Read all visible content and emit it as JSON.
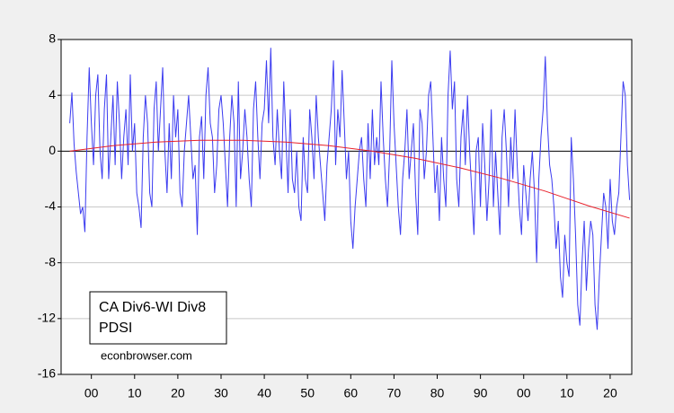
{
  "chart_data": {
    "type": "line",
    "annotations": [
      "CA Div6-WI Div8",
      "PDSI"
    ],
    "source": "econbrowser.com",
    "xlim": [
      1893,
      2025
    ],
    "xticks": [
      {
        "value": 1900,
        "label": "00"
      },
      {
        "value": 1910,
        "label": "10"
      },
      {
        "value": 1920,
        "label": "20"
      },
      {
        "value": 1930,
        "label": "30"
      },
      {
        "value": 1940,
        "label": "40"
      },
      {
        "value": 1950,
        "label": "50"
      },
      {
        "value": 1960,
        "label": "60"
      },
      {
        "value": 1970,
        "label": "70"
      },
      {
        "value": 1980,
        "label": "80"
      },
      {
        "value": 1990,
        "label": "90"
      },
      {
        "value": 2000,
        "label": "00"
      },
      {
        "value": 2010,
        "label": "10"
      },
      {
        "value": 2020,
        "label": "20"
      }
    ],
    "ylim": [
      -16,
      8
    ],
    "yticks": [
      -16,
      -12,
      -8,
      -4,
      0,
      4,
      8
    ],
    "grid": true,
    "series": [
      {
        "color": "#3b3bf0",
        "x": [
          1895,
          1895.5,
          1896,
          1896.5,
          1897,
          1897.5,
          1898,
          1898.5,
          1899,
          1899.5,
          1900,
          1900.5,
          1901,
          1901.5,
          1902,
          1902.5,
          1903,
          1903.5,
          1904,
          1904.5,
          1905,
          1905.5,
          1906,
          1906.5,
          1907,
          1907.5,
          1908,
          1908.5,
          1909,
          1909.5,
          1910,
          1910.5,
          1911,
          1911.5,
          1912,
          1912.5,
          1913,
          1913.5,
          1914,
          1914.5,
          1915,
          1915.5,
          1916,
          1916.5,
          1917,
          1917.5,
          1918,
          1918.5,
          1919,
          1919.5,
          1920,
          1920.5,
          1921,
          1921.5,
          1922,
          1922.5,
          1923,
          1923.5,
          1924,
          1924.5,
          1925,
          1925.5,
          1926,
          1926.5,
          1927,
          1927.5,
          1928,
          1928.5,
          1929,
          1929.5,
          1930,
          1930.5,
          1931,
          1931.5,
          1932,
          1932.5,
          1933,
          1933.5,
          1934,
          1934.5,
          1935,
          1935.5,
          1936,
          1936.5,
          1937,
          1937.5,
          1938,
          1938.5,
          1939,
          1939.5,
          1940,
          1940.5,
          1941,
          1941.5,
          1942,
          1942.5,
          1943,
          1943.5,
          1944,
          1944.5,
          1945,
          1945.5,
          1946,
          1946.5,
          1947,
          1947.5,
          1948,
          1948.5,
          1949,
          1949.5,
          1950,
          1950.5,
          1951,
          1951.5,
          1952,
          1952.5,
          1953,
          1953.5,
          1954,
          1954.5,
          1955,
          1955.5,
          1956,
          1956.5,
          1957,
          1957.5,
          1958,
          1958.5,
          1959,
          1959.5,
          1960,
          1960.5,
          1961,
          1961.5,
          1962,
          1962.5,
          1963,
          1963.5,
          1964,
          1964.5,
          1965,
          1965.5,
          1966,
          1966.5,
          1967,
          1967.5,
          1968,
          1968.5,
          1969,
          1969.5,
          1970,
          1970.5,
          1971,
          1971.5,
          1972,
          1972.5,
          1973,
          1973.5,
          1974,
          1974.5,
          1975,
          1975.5,
          1976,
          1976.5,
          1977,
          1977.5,
          1978,
          1978.5,
          1979,
          1979.5,
          1980,
          1980.5,
          1981,
          1981.5,
          1982,
          1982.5,
          1983,
          1983.5,
          1984,
          1984.5,
          1985,
          1985.5,
          1986,
          1986.5,
          1987,
          1987.5,
          1988,
          1988.5,
          1989,
          1989.5,
          1990,
          1990.5,
          1991,
          1991.5,
          1992,
          1992.5,
          1993,
          1993.5,
          1994,
          1994.5,
          1995,
          1995.5,
          1996,
          1996.5,
          1997,
          1997.5,
          1998,
          1998.5,
          1999,
          1999.5,
          2000,
          2000.5,
          2001,
          2001.5,
          2002,
          2002.5,
          2003,
          2003.5,
          2004,
          2004.5,
          2005,
          2005.5,
          2006,
          2006.5,
          2007,
          2007.5,
          2008,
          2008.5,
          2009,
          2009.5,
          2010,
          2010.5,
          2011,
          2011.5,
          2012,
          2012.5,
          2013,
          2013.5,
          2014,
          2014.5,
          2015,
          2015.5,
          2016,
          2016.5,
          2017,
          2017.5,
          2018,
          2018.5,
          2019,
          2019.5,
          2020,
          2020.5,
          2021,
          2021.5,
          2022,
          2022.5,
          2023,
          2023.5,
          2024,
          2024.5
        ],
        "values": [
          2,
          4.2,
          0.5,
          -1.5,
          -3,
          -4.5,
          -4,
          -5.8,
          1,
          6,
          2,
          -1,
          4,
          5.5,
          0,
          -2,
          3,
          5.5,
          -2,
          1,
          4,
          -1,
          5,
          2,
          -2,
          1,
          3,
          -1,
          5.5,
          0,
          2,
          -3,
          -4,
          -5.5,
          1,
          4,
          2,
          -3,
          -4,
          3,
          5,
          0,
          3,
          6,
          0,
          -3,
          2,
          -2,
          4,
          1,
          3,
          -3,
          -4,
          0,
          2,
          4,
          1,
          -2,
          -1,
          -6,
          1,
          2.5,
          -2,
          4,
          6,
          2,
          1,
          -3,
          -1,
          3,
          4,
          2,
          -1,
          -4,
          1,
          4,
          2,
          -4,
          5,
          -2,
          0,
          3,
          1,
          -2,
          -4,
          3,
          5,
          1,
          -2,
          2,
          3,
          6.5,
          2,
          7.4,
          1,
          -1,
          3,
          0,
          -2,
          5,
          1,
          -3,
          3,
          -2,
          -3,
          0,
          -4,
          -5,
          1,
          -2,
          -3,
          3,
          1,
          -2,
          4,
          1,
          -1,
          -3,
          -5,
          -1,
          1,
          3,
          6.5,
          -1,
          3,
          1,
          5.8,
          2,
          -2,
          0,
          -5,
          -7,
          -4,
          -2,
          0,
          1,
          -2,
          -4,
          2,
          -2,
          3,
          -1,
          1,
          -1,
          5,
          1,
          -2,
          -4,
          0,
          6.5,
          2,
          -1,
          -4,
          -6,
          -2,
          0,
          3,
          -2,
          0,
          2,
          -3,
          -6,
          3,
          2,
          -2,
          0,
          4,
          5,
          1,
          -3,
          -1,
          -5,
          1,
          -2,
          -4,
          4,
          7.2,
          3,
          5,
          -2,
          -4,
          1,
          3,
          -1,
          4,
          0,
          -3,
          -6,
          0,
          1,
          -4,
          2,
          -1,
          -5,
          -2,
          3,
          -4,
          0,
          -3,
          -6,
          1,
          3,
          0,
          -4,
          1,
          -2,
          3,
          -1,
          -4,
          -6,
          -1,
          -3,
          -5,
          -2,
          0,
          -3,
          -8,
          -2,
          1,
          3,
          6.8,
          2,
          -1,
          -2,
          -4,
          -7,
          -5,
          -9,
          -10.5,
          -6,
          -8,
          -9,
          1,
          -2,
          -6,
          -11,
          -12.5,
          -8,
          -5,
          -10,
          -7,
          -5,
          -6,
          -11,
          -12.8,
          -9,
          -6,
          -3,
          -4,
          -7,
          -2,
          -5,
          -6,
          -4,
          -3,
          1,
          5,
          4,
          -1,
          -3.5
        ]
      },
      {
        "color": "#e8202a",
        "x": [
          1895,
          1905,
          1915,
          1925,
          1935,
          1945,
          1955,
          1965,
          1975,
          1985,
          1995,
          2005,
          2015,
          2024.5
        ],
        "values": [
          0,
          0.39,
          0.65,
          0.78,
          0.78,
          0.65,
          0.39,
          0,
          -0.52,
          -1.18,
          -1.96,
          -2.87,
          -3.92,
          -4.8
        ]
      }
    ]
  }
}
